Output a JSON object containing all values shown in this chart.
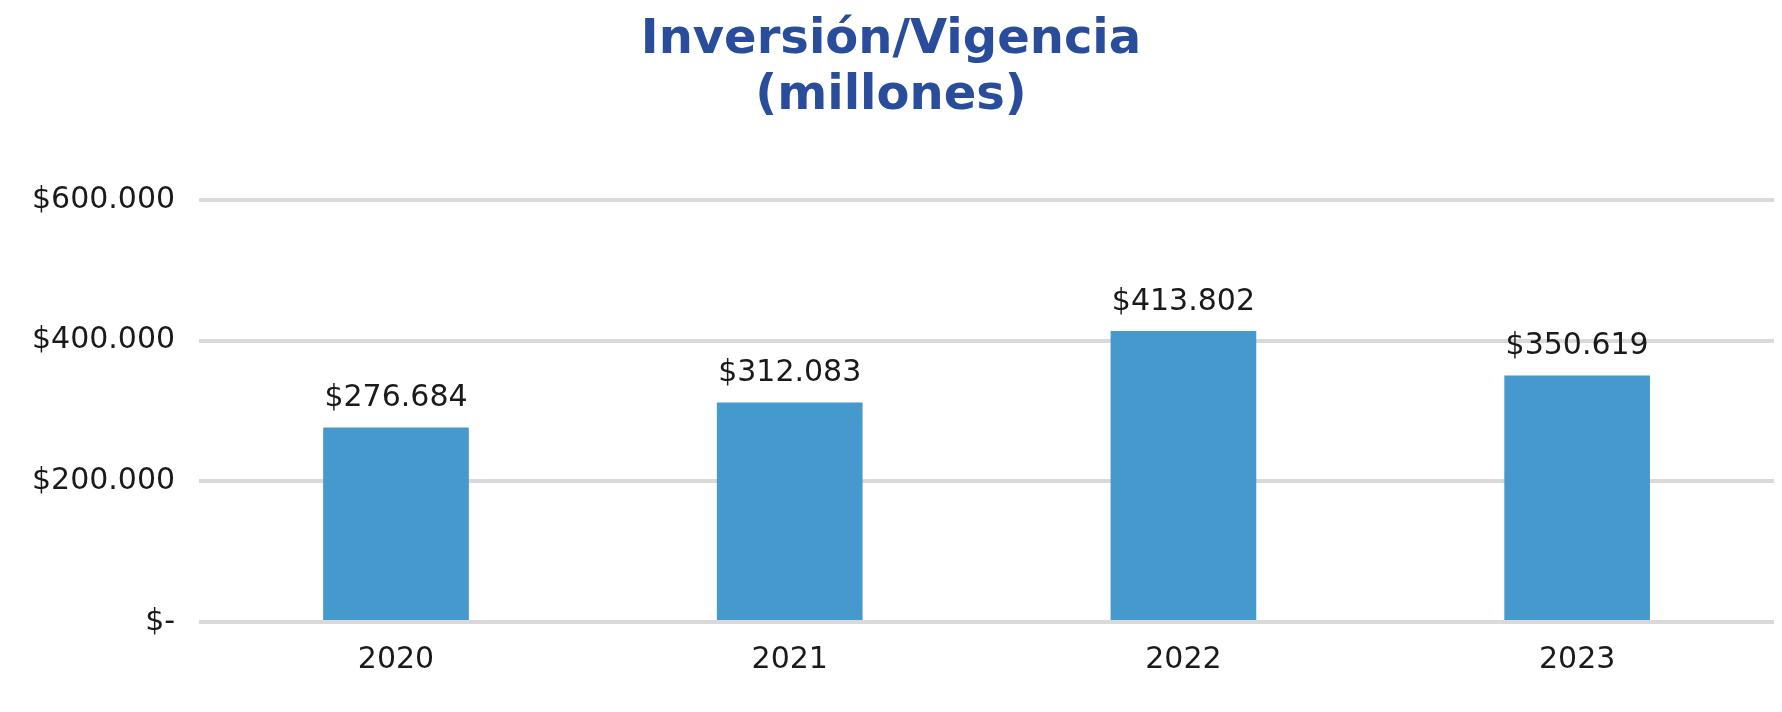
{
  "chart_data": {
    "type": "bar",
    "title": "Inversión/Vigencia (millones)",
    "categories": [
      "2020",
      "2021",
      "2022",
      "2023"
    ],
    "values": [
      276684,
      312083,
      413802,
      350619
    ],
    "value_labels": [
      "$276.684",
      "$312.083",
      "$413.802",
      "$350.619"
    ],
    "color": "#4699cd",
    "ylim": [
      0,
      600000
    ],
    "yticks": [
      {
        "value": 0,
        "label": "$-"
      },
      {
        "value": 200000,
        "label": "$200.000"
      },
      {
        "value": 400000,
        "label": "$400.000"
      },
      {
        "value": 600000,
        "label": "$600.000"
      }
    ],
    "grid": "y",
    "legend": false
  }
}
